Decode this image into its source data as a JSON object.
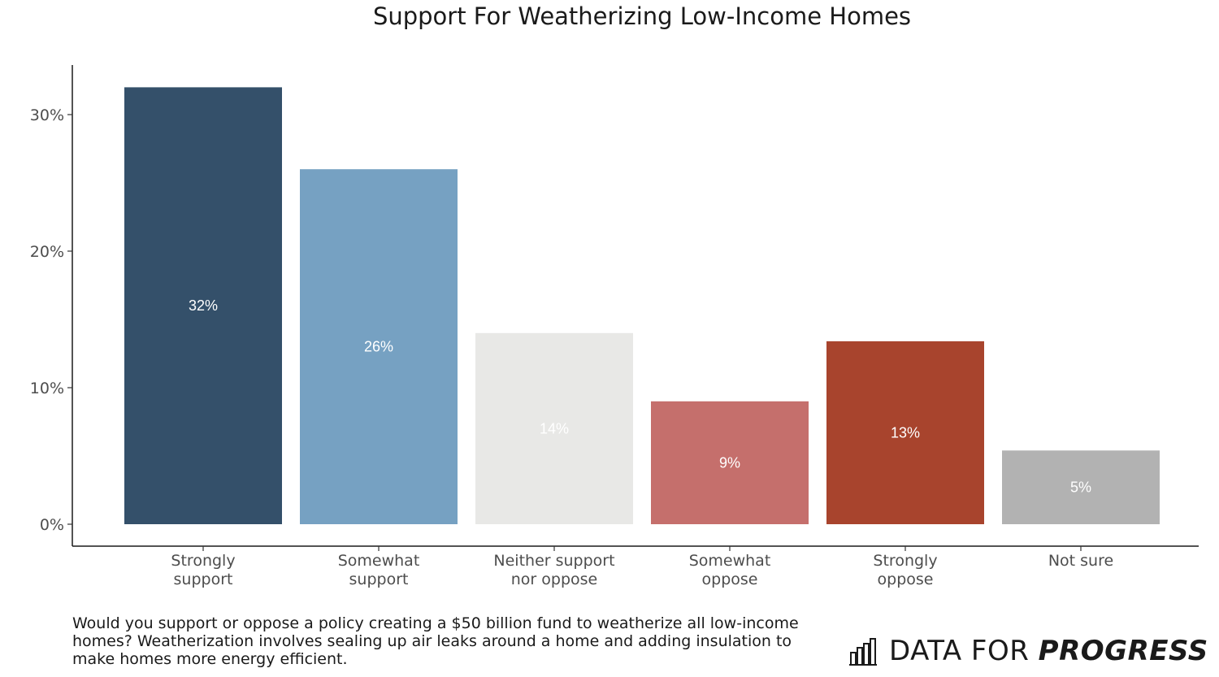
{
  "chart_data": {
    "type": "bar",
    "title": "Support For Weatherizing Low-Income Homes",
    "xlabel": "",
    "ylabel": "",
    "ylim": [
      0,
      0.33
    ],
    "yticks": [
      0,
      0.1,
      0.2,
      0.3
    ],
    "ytick_labels": [
      "0%",
      "10%",
      "20%",
      "30%"
    ],
    "categories": [
      [
        "Strongly",
        "support"
      ],
      [
        "Somewhat",
        "support"
      ],
      [
        "Neither support",
        "nor oppose"
      ],
      [
        "Somewhat",
        "oppose"
      ],
      [
        "Strongly",
        "oppose"
      ],
      [
        "Not sure"
      ]
    ],
    "values": [
      0.32,
      0.26,
      0.14,
      0.09,
      0.134,
      0.054
    ],
    "value_labels": [
      "32%",
      "26%",
      "14%",
      "9%",
      "13%",
      "5%"
    ],
    "colors": [
      "#34506a",
      "#76a1c2",
      "#e8e8e6",
      "#c56f6c",
      "#a8442d",
      "#b2b2b2"
    ],
    "grid": false,
    "legend": "none"
  },
  "caption": "Would you support or oppose a policy creating a $50 billion fund to weatherize all low-income homes? Weatherization involves sealing up air leaks around a home and adding insulation to make homes more energy efficient.",
  "brand": {
    "icon": "bar-chart-logo-icon",
    "name_light": "DATA FOR ",
    "name_bold": "PROGRESS"
  }
}
